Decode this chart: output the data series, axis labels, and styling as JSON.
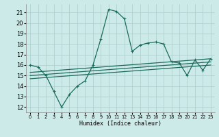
{
  "xlabel": "Humidex (Indice chaleur)",
  "background_color": "#cceae8",
  "grid_color": "#aacccc",
  "line_color": "#1a6b5a",
  "xlim": [
    -0.5,
    23.5
  ],
  "ylim": [
    11.5,
    21.8
  ],
  "xticks": [
    0,
    1,
    2,
    3,
    4,
    5,
    6,
    7,
    8,
    9,
    10,
    11,
    12,
    13,
    14,
    15,
    16,
    17,
    18,
    19,
    20,
    21,
    22,
    23
  ],
  "yticks": [
    12,
    13,
    14,
    15,
    16,
    17,
    18,
    19,
    20,
    21
  ],
  "line1_x": [
    0,
    1,
    2,
    3,
    4,
    5,
    6,
    7,
    8,
    9,
    10,
    11,
    12,
    13,
    14,
    15,
    16,
    17,
    18,
    19,
    20,
    21,
    22,
    23
  ],
  "line1_y": [
    16.0,
    15.8,
    15.0,
    13.5,
    12.0,
    13.2,
    14.0,
    14.5,
    16.0,
    18.5,
    21.3,
    21.1,
    20.4,
    17.3,
    17.9,
    18.1,
    18.2,
    18.0,
    16.3,
    16.2,
    15.0,
    16.5,
    15.5,
    16.6
  ],
  "line2_x": [
    0,
    23
  ],
  "line2_y": [
    14.7,
    16.0
  ],
  "line3_x": [
    0,
    23
  ],
  "line3_y": [
    15.0,
    16.3
  ],
  "line4_x": [
    0,
    23
  ],
  "line4_y": [
    15.3,
    16.6
  ]
}
